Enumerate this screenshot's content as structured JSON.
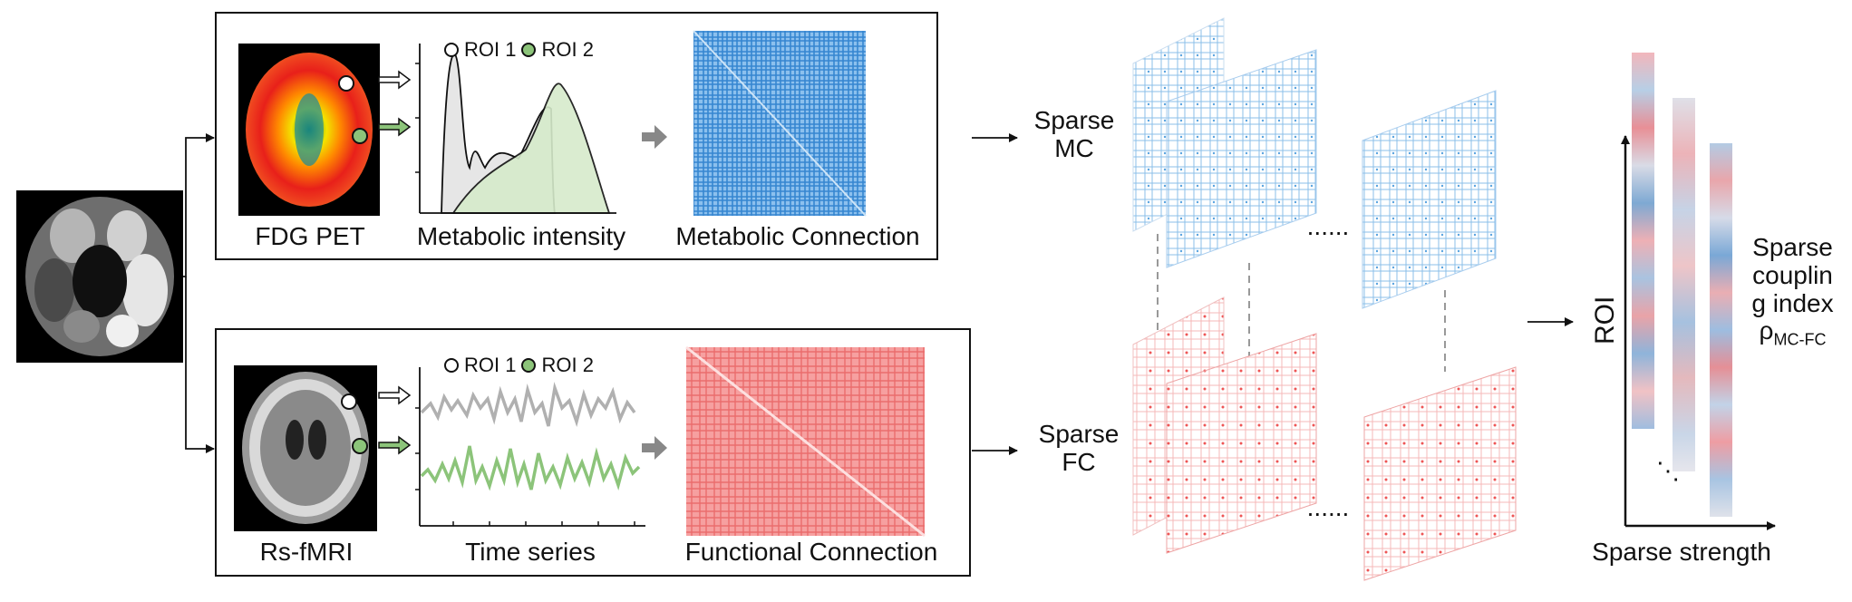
{
  "top_panel": {
    "image_caption": "FDG PET",
    "plot_caption": "Metabolic intensity",
    "matrix_caption": "Metabolic Connection",
    "legend_roi1": "ROI 1",
    "legend_roi2": "ROI 2"
  },
  "bottom_panel": {
    "image_caption": "Rs-fMRI",
    "plot_caption": "Time series",
    "matrix_caption": "Functional Connection",
    "legend_roi1": "ROI 1",
    "legend_roi2": "ROI 2"
  },
  "stack_labels": {
    "mc_line1": "Sparse",
    "mc_line2": "MC",
    "fc_line1": "Sparse",
    "fc_line2": "FC",
    "ellipsis_mc": "......",
    "ellipsis_fc": "......"
  },
  "output_plot": {
    "y_label": "ROI",
    "x_label": "Sparse strength",
    "index_line1": "Sparse",
    "index_line2": "couplin",
    "index_line3": "g index",
    "rho_symbol": "ρ",
    "rho_sub": "MC-FC",
    "dots": "⋱"
  },
  "colors": {
    "mc_blue": "#1f78c8",
    "fc_red": "#e8454a",
    "roi2_green": "#8cc47a",
    "arrow_gray": "#888888"
  }
}
